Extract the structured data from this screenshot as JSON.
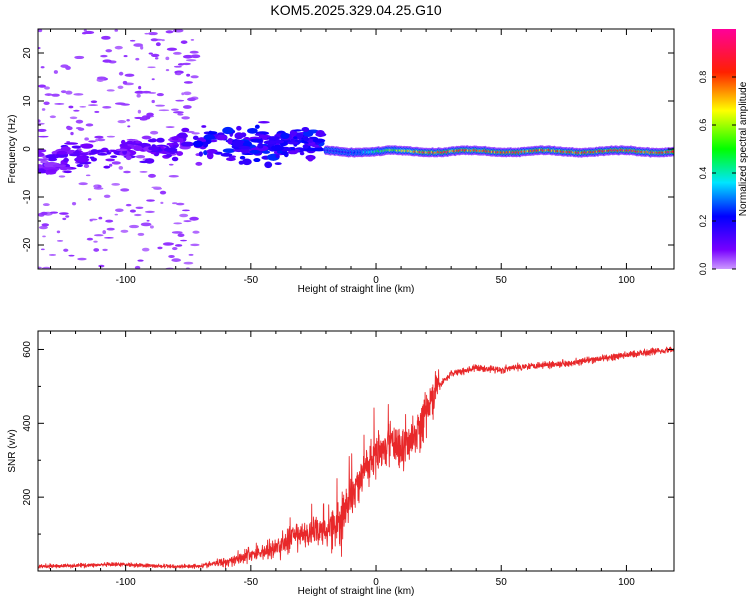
{
  "figure_title": "KOM5.2025.329.04.25.G10",
  "chart_data": [
    {
      "type": "heatmap",
      "title": "KOM5.2025.329.04.25.G10",
      "xlabel": "Height of straight line (km)",
      "ylabel": "Frequency (Hz)",
      "xlim": [
        -135,
        119
      ],
      "ylim": [
        -25,
        25
      ],
      "xticks": [
        -100,
        -50,
        0,
        50,
        100
      ],
      "xtick_labels": [
        "-100",
        "-50",
        "0",
        "50",
        "100"
      ],
      "yticks": [
        -20,
        -10,
        0,
        10,
        20
      ],
      "ytick_labels": [
        "-20",
        "-10",
        "0",
        "10",
        "20"
      ],
      "colorbar": {
        "label": "Normalized spectral amplitude",
        "range": [
          0,
          1
        ],
        "ticks": [
          0,
          0.2,
          0.4,
          0.6,
          0.8
        ],
        "tick_labels": [
          "0.0",
          "0.2",
          "0.4",
          "0.6",
          "0.8"
        ],
        "colormap": "rainbow (purple-blue-cyan-green-yellow-red-pink)"
      },
      "features": [
        {
          "name": "noise-speckle",
          "x_range": [
            -135,
            -70
          ],
          "freq_range": [
            -25,
            25
          ],
          "amplitude": 0.02
        },
        {
          "name": "diffuse-band",
          "x_range": [
            -135,
            -75
          ],
          "freq_range": [
            -8,
            2
          ],
          "amplitude": 0.05
        },
        {
          "name": "broadening-cluster",
          "x_range": [
            -72,
            -22
          ],
          "freq_range": [
            -5,
            7
          ],
          "amplitude": 0.1
        },
        {
          "name": "main-ridge",
          "x_range": [
            -20,
            119
          ],
          "center_freq": -0.5,
          "half_width": 1.0,
          "amplitude": 0.95
        }
      ]
    },
    {
      "type": "line",
      "xlabel": "Height of straight line (km)",
      "ylabel": "SNR (v/v)",
      "xlim": [
        -135,
        119
      ],
      "ylim": [
        0,
        650
      ],
      "xticks": [
        -100,
        -50,
        0,
        50,
        100
      ],
      "xtick_labels": [
        "-100",
        "-50",
        "0",
        "50",
        "100"
      ],
      "yticks": [
        200,
        400,
        600
      ],
      "ytick_labels": [
        "200",
        "400",
        "600"
      ],
      "series": [
        {
          "name": "SNR",
          "color": "#e8282a",
          "x": [
            -135,
            -120,
            -100,
            -90,
            -80,
            -70,
            -60,
            -50,
            -40,
            -35,
            -30,
            -25,
            -20,
            -15,
            -10,
            -5,
            0,
            5,
            10,
            15,
            20,
            25,
            30,
            40,
            50,
            60,
            70,
            80,
            90,
            100,
            110,
            119
          ],
          "y": [
            12,
            15,
            18,
            14,
            12,
            14,
            25,
            45,
            60,
            85,
            100,
            105,
            115,
            130,
            200,
            270,
            320,
            350,
            330,
            360,
            430,
            500,
            535,
            550,
            545,
            555,
            560,
            565,
            575,
            585,
            595,
            600
          ]
        }
      ]
    }
  ]
}
